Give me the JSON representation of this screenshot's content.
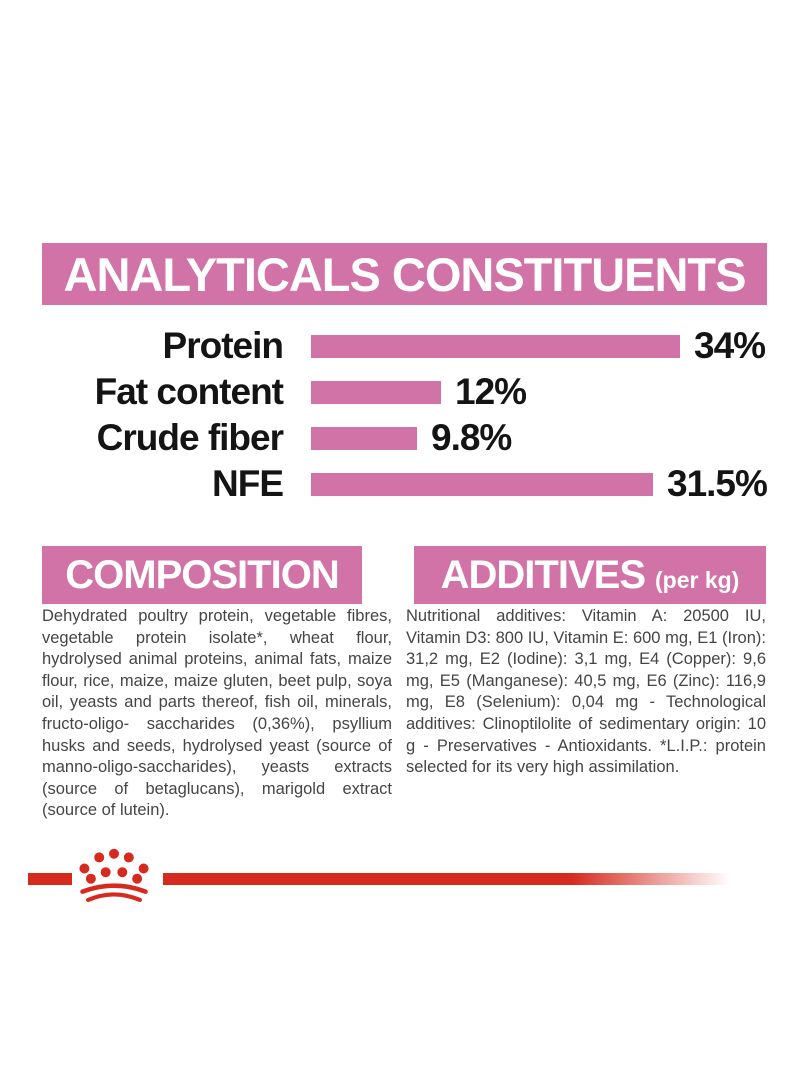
{
  "colors": {
    "pink": "#d173a6",
    "red": "#d62a1e",
    "text_gray": "#454545",
    "label_black": "#141414"
  },
  "analyticals": {
    "title": "ANALYTICALS CONSTITUENTS",
    "rows": [
      {
        "label": "Protein",
        "value": "34%",
        "pct": 34
      },
      {
        "label": "Fat content",
        "value": "12%",
        "pct": 12
      },
      {
        "label": "Crude fiber",
        "value": "9.8%",
        "pct": 9.8
      },
      {
        "label": "NFE",
        "value": "31.5%",
        "pct": 31.5
      }
    ]
  },
  "chart_data": {
    "type": "bar",
    "orientation": "horizontal",
    "categories": [
      "Protein",
      "Fat content",
      "Crude fiber",
      "NFE"
    ],
    "values": [
      34,
      12,
      9.8,
      31.5
    ],
    "value_labels": [
      "34%",
      "12%",
      "9.8%",
      "31.5%"
    ],
    "title": "ANALYTICALS CONSTITUENTS",
    "xlabel": "",
    "ylabel": "",
    "xlim": [
      0,
      40
    ],
    "grid": false,
    "legend": false,
    "bar_color": "#d173a6"
  },
  "composition": {
    "title": "COMPOSITION",
    "text": "Dehydrated poultry protein, vegetable fibres, vegetable protein isolate*, wheat flour, hydrolysed animal proteins, animal fats, maize flour, rice, maize, maize gluten, beet pulp, soya oil, yeasts and parts thereof, fish oil, minerals, fructo-oligo- saccharides (0,36%), psyllium husks and seeds, hydrolysed yeast (source of manno-oligo-saccharides), yeasts extracts (source of betaglucans), marigold extract (source of lutein)."
  },
  "additives": {
    "title": "ADDITIVES",
    "subtitle": "(per kg)",
    "text": "Nutritional additives: Vitamin A: 20500 IU, Vitamin D3: 800 IU, Vitamin E: 600 mg, E1 (Iron): 31,2 mg, E2 (Iodine): 3,1 mg, E4 (Copper): 9,6 mg, E5 (Manganese): 40,5 mg, E6 (Zinc): 116,9 mg, E8 (Selenium): 0,04 mg - Technological additives: Clinoptilolite of sedimentary origin: 10 g - Preservatives - Antioxidants. *L.I.P.: protein selected for its very high assimilation."
  },
  "footer": {
    "logo": "royal-canin-crown"
  }
}
